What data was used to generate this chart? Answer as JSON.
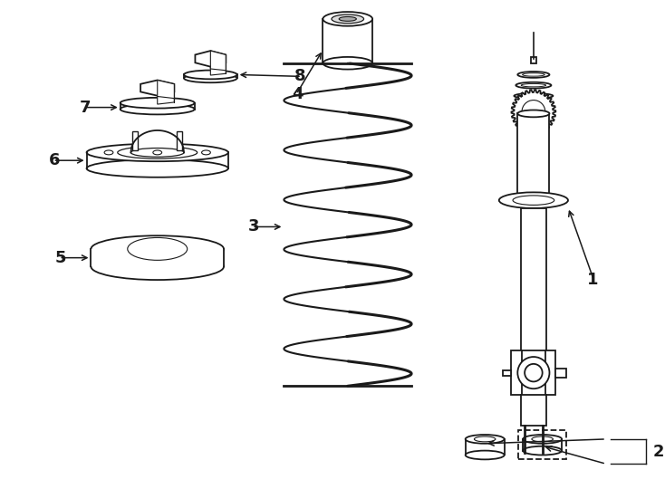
{
  "background_color": "#ffffff",
  "line_color": "#1a1a1a",
  "figsize": [
    7.34,
    5.4
  ],
  "dpi": 100
}
